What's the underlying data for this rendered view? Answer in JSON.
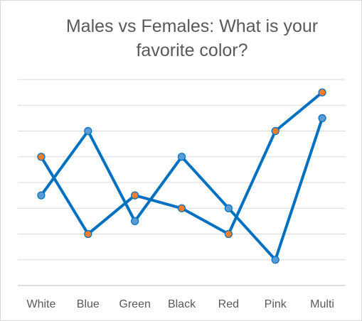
{
  "chart_data": {
    "type": "line",
    "title": "Males vs Females: What is your favorite color?",
    "title_lines": [
      "Males vs Females: What is your",
      "favorite color?"
    ],
    "categories": [
      "White",
      "Blue",
      "Green",
      "Black",
      "Red",
      "Pink",
      "Multi"
    ],
    "ylim": [
      0,
      8
    ],
    "grid": true,
    "series": [
      {
        "values": [
          5,
          2,
          3.5,
          3,
          2,
          6,
          7.5
        ],
        "color": "#0070C0",
        "marker_fill": "#ED7D31"
      },
      {
        "values": [
          3.5,
          6,
          2.5,
          5,
          3,
          1,
          6.5
        ],
        "color": "#0070C0",
        "marker_fill": "#5B9BD5"
      }
    ]
  }
}
